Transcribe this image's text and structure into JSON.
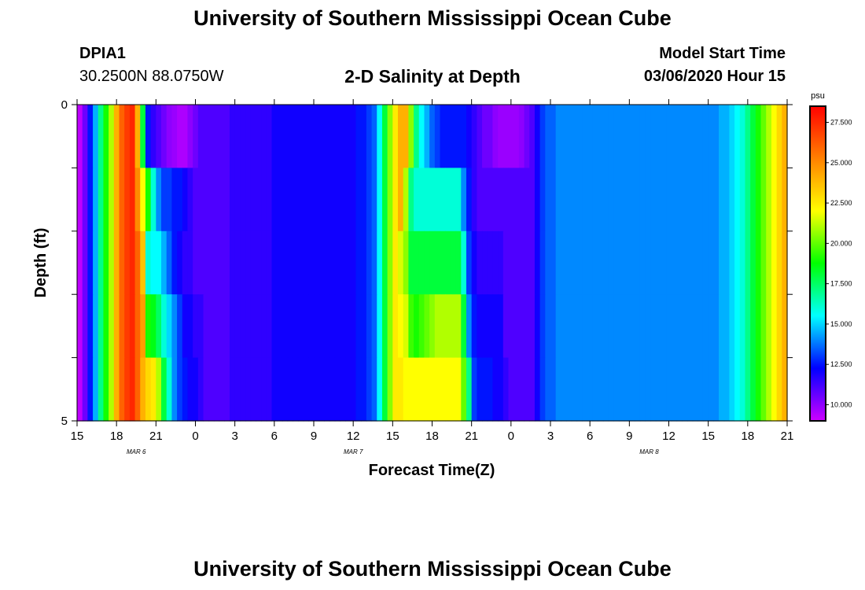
{
  "header": {
    "title": "University of Southern Mississippi Ocean Cube",
    "station": "DPIA1",
    "coords": "30.2500N 88.0750W",
    "plot_title": "2-D Salinity at Depth",
    "model_label": "Model Start Time",
    "model_time": "03/06/2020 Hour 15"
  },
  "footer": {
    "title": "University of Southern Mississippi Ocean Cube"
  },
  "colors": {
    "colormap": [
      "#cc00ff",
      "#0000ff",
      "#00ffff",
      "#00ff00",
      "#ffff00",
      "#ff8000",
      "#ff0000"
    ]
  },
  "chart_data": {
    "type": "heatmap",
    "xlabel": "Forecast Time(Z)",
    "ylabel": "Depth (ft)",
    "ylim": [
      0,
      5
    ],
    "y_tick_labels": [
      "0",
      "",
      "",
      "",
      "",
      "5"
    ],
    "x_tick_labels": [
      "15",
      "18",
      "21",
      "0",
      "3",
      "6",
      "9",
      "12",
      "15",
      "18",
      "21",
      "0",
      "3",
      "6",
      "9",
      "12",
      "15",
      "18",
      "21"
    ],
    "months": [
      {
        "label": "MAR 6",
        "hour": 4.5
      },
      {
        "label": "MAR 7",
        "hour": 21
      },
      {
        "label": "MAR 8",
        "hour": 43.5
      }
    ],
    "x_range_hours": [
      0,
      54
    ],
    "depth_layers": [
      0,
      1,
      2,
      3,
      4
    ],
    "colorbar": {
      "unit": "psu",
      "range": [
        9,
        28.5
      ],
      "tick_values": [
        10,
        12.5,
        15,
        17.5,
        20,
        22.5,
        25,
        27.5
      ],
      "tick_labels": [
        "10.000",
        "12.500",
        "15.000",
        "17.500",
        "20.000",
        "22.500",
        "25.000",
        "27.500"
      ]
    },
    "rows": [
      [
        9.2,
        10.5,
        12.5,
        14.5,
        17,
        19,
        21,
        24,
        26,
        27,
        27.5,
        24,
        18,
        12.5,
        11.5,
        11,
        10.5,
        10,
        9.8,
        9.5,
        9.5,
        10,
        10.5,
        11,
        11,
        11,
        11,
        11,
        11,
        11.5,
        11.5,
        11.5,
        11.5,
        11.5,
        11.5,
        11.5,
        11.5,
        12,
        12,
        12,
        12,
        12,
        12,
        12,
        12,
        12,
        12,
        12,
        12,
        12,
        12,
        12,
        12,
        12.5,
        12.5,
        13,
        13.5,
        15.5,
        18,
        20.5,
        22.5,
        24,
        24,
        20.5,
        17,
        15.5,
        14.5,
        13.5,
        13,
        12.5,
        12.5,
        12.5,
        12.5,
        12.5,
        12,
        11.5,
        11,
        10.5,
        10.5,
        10,
        9.8,
        9.8,
        9.8,
        9.8,
        10,
        10.5,
        11,
        12,
        13,
        13.5,
        13.5,
        14,
        14,
        14,
        14,
        14,
        14,
        14,
        14,
        14,
        14,
        14,
        14,
        14,
        14,
        14,
        14,
        14,
        14,
        14,
        14,
        14,
        14,
        14,
        14,
        14,
        14,
        14,
        14,
        14,
        14,
        14,
        14.5,
        14.5,
        15,
        15.5,
        16,
        17,
        18,
        19,
        20,
        21,
        22,
        23,
        24
      ],
      [
        9.2,
        10.5,
        12.5,
        14.5,
        17,
        19,
        21,
        24,
        26,
        27,
        27.5,
        25,
        22,
        19,
        16,
        14,
        13,
        13,
        12.5,
        12.5,
        12,
        11.5,
        11,
        11,
        11,
        11,
        11,
        11,
        11,
        11.5,
        11.5,
        11.5,
        11.5,
        11.5,
        11.5,
        11.5,
        11.5,
        12,
        12,
        12,
        12,
        12,
        12,
        12,
        12,
        12,
        12,
        12,
        12,
        12,
        12,
        12,
        12,
        12.5,
        12.5,
        13,
        13.5,
        15.5,
        18,
        20.5,
        22.5,
        24,
        21,
        17,
        16,
        16,
        16,
        16,
        16,
        16,
        16,
        16,
        16,
        14,
        12.5,
        11.5,
        11,
        11,
        11,
        11,
        11,
        11,
        11,
        11,
        11,
        11,
        11,
        12,
        13,
        13.5,
        13.5,
        14,
        14,
        14,
        14,
        14,
        14,
        14,
        14,
        14,
        14,
        14,
        14,
        14,
        14,
        14,
        14,
        14,
        14,
        14,
        14,
        14,
        14,
        14,
        14,
        14,
        14,
        14,
        14,
        14,
        14,
        14,
        14.5,
        14.5,
        15,
        15.5,
        16,
        17,
        18,
        19,
        20,
        21,
        22,
        23,
        24
      ],
      [
        9.2,
        10.5,
        12.5,
        14.5,
        17,
        19,
        21,
        24,
        26,
        27,
        27.5,
        26,
        23.5,
        16,
        15.5,
        15.5,
        14.5,
        13.5,
        12.5,
        12,
        11.5,
        11.5,
        11,
        11,
        11,
        11,
        11,
        11,
        11,
        11.5,
        11.5,
        11.5,
        11.5,
        11.5,
        11.5,
        11.5,
        11.5,
        12,
        12,
        12,
        12,
        12,
        12,
        12,
        12,
        12,
        12,
        12,
        12,
        12,
        12,
        12,
        12,
        12.5,
        12.5,
        13,
        13.5,
        15.5,
        18,
        20.5,
        22.5,
        21.5,
        20.5,
        18,
        18,
        18,
        18,
        18,
        18,
        18,
        18,
        18,
        18,
        16,
        13,
        12,
        11.5,
        11.5,
        11.5,
        11.5,
        11.5,
        11,
        11,
        11,
        11,
        11,
        11,
        12,
        13,
        13.5,
        13.5,
        14,
        14,
        14,
        14,
        14,
        14,
        14,
        14,
        14,
        14,
        14,
        14,
        14,
        14,
        14,
        14,
        14,
        14,
        14,
        14,
        14,
        14,
        14,
        14,
        14,
        14,
        14,
        14,
        14,
        14,
        14,
        14.5,
        14.5,
        15,
        15.5,
        16,
        17,
        18,
        19,
        20,
        21,
        22,
        23,
        24
      ],
      [
        9.2,
        10.5,
        12.5,
        14.5,
        17,
        19,
        21,
        24,
        26,
        27,
        27.5,
        26,
        24.5,
        19,
        18.5,
        17.5,
        16,
        15,
        14,
        13,
        12,
        12,
        11.5,
        11.5,
        11,
        11,
        11,
        11,
        11,
        11.5,
        11.5,
        11.5,
        11.5,
        11.5,
        11.5,
        11.5,
        11.5,
        12,
        12,
        12,
        12,
        12,
        12,
        12,
        12,
        12,
        12,
        12,
        12,
        12,
        12,
        12,
        12,
        12.5,
        12.5,
        13,
        13.5,
        15.5,
        18,
        20.5,
        22.5,
        22,
        21.5,
        19.5,
        19,
        19.5,
        20,
        20.5,
        21,
        21,
        21,
        21,
        21,
        18,
        14,
        12.5,
        12,
        12,
        12,
        12,
        12,
        11,
        11,
        11,
        11,
        11,
        11,
        12,
        13,
        13.5,
        13.5,
        14,
        14,
        14,
        14,
        14,
        14,
        14,
        14,
        14,
        14,
        14,
        14,
        14,
        14,
        14,
        14,
        14,
        14,
        14,
        14,
        14,
        14,
        14,
        14,
        14,
        14,
        14,
        14,
        14,
        14,
        14,
        14.5,
        14.5,
        15,
        15.5,
        16,
        17,
        18,
        19,
        20,
        21,
        22,
        23,
        24
      ],
      [
        9.2,
        10.5,
        12.5,
        14.5,
        17,
        19,
        21,
        24,
        26,
        27,
        27.5,
        26,
        24,
        23,
        22.5,
        21,
        18,
        16,
        14,
        13,
        12.5,
        12,
        12,
        11.5,
        11,
        11,
        11,
        11,
        11,
        11.5,
        11.5,
        11.5,
        11.5,
        11.5,
        11.5,
        11.5,
        11.5,
        12,
        12,
        12,
        12,
        12,
        12,
        12,
        12,
        12,
        12,
        12,
        12,
        12,
        12,
        12,
        12,
        12.5,
        12.5,
        13,
        13.5,
        15.5,
        18,
        20.5,
        22.5,
        22.5,
        22,
        22,
        22,
        22,
        22,
        22,
        22,
        22,
        22,
        22,
        22,
        20,
        17,
        13,
        12.5,
        12.5,
        12.5,
        12,
        12,
        11.5,
        11,
        11,
        11,
        11,
        11,
        12,
        13,
        13.5,
        13.5,
        14,
        14,
        14,
        14,
        14,
        14,
        14,
        14,
        14,
        14,
        14,
        14,
        14,
        14,
        14,
        14,
        14,
        14,
        14,
        14,
        14,
        14,
        14,
        14,
        14,
        14,
        14,
        14,
        14,
        14,
        14,
        14.5,
        14.5,
        15,
        15.5,
        16,
        17,
        18,
        19,
        20,
        21,
        22,
        23,
        24
      ]
    ]
  }
}
